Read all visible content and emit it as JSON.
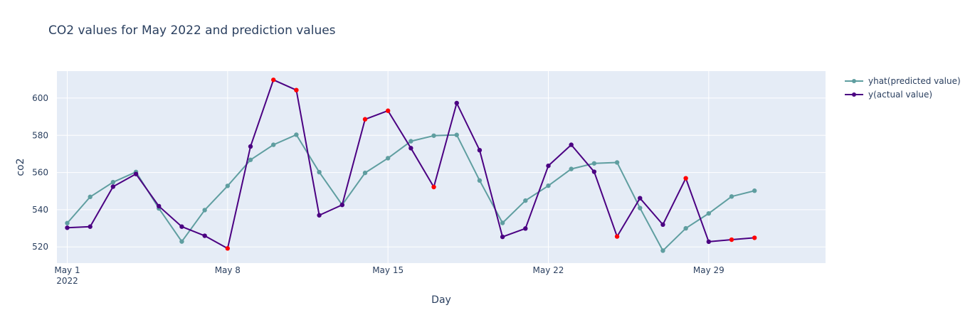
{
  "chart_data": {
    "type": "line",
    "title": "CO2 values for May 2022 and prediction values",
    "xlabel": "Day",
    "ylabel": "co2",
    "x_ticks": [
      "May 1",
      "May 8",
      "May 15",
      "May 22",
      "May 29"
    ],
    "x_tick_year": "2022",
    "x_tick_days": [
      1,
      8,
      15,
      22,
      29
    ],
    "y_ticks": [
      520,
      540,
      560,
      580,
      600
    ],
    "xlim": [
      0.55,
      34.1
    ],
    "ylim": [
      511.3,
      614.5
    ],
    "grid": true,
    "legend_position": "right",
    "days": [
      1,
      2,
      3,
      4,
      5,
      6,
      7,
      8,
      9,
      10,
      11,
      12,
      13,
      14,
      15,
      16,
      17,
      18,
      19,
      20,
      21,
      22,
      23,
      24,
      25,
      26,
      27,
      28,
      29,
      30,
      31
    ],
    "series": [
      {
        "name": "yhat(predicted value)",
        "color": "#5f9ea0",
        "values": [
          532.8,
          546.9,
          554.8,
          560.3,
          540.7,
          522.9,
          539.8,
          552.8,
          566.8,
          574.9,
          580.3,
          560.2,
          542.6,
          559.8,
          567.7,
          576.8,
          579.8,
          580.2,
          555.7,
          532.9,
          544.9,
          552.9,
          561.9,
          564.9,
          565.4,
          540.9,
          518.0,
          530.0,
          538.0,
          547.1,
          550.2
        ]
      },
      {
        "name": "y(actual value)",
        "color": "#4b0082",
        "highlight_color": "#ff0000",
        "values": [
          530.3,
          530.9,
          552.4,
          559.2,
          541.9,
          530.9,
          526.0,
          519.2,
          574.0,
          609.8,
          604.3,
          537.0,
          542.6,
          588.6,
          593.2,
          573.1,
          552.2,
          597.3,
          572.0,
          525.4,
          529.9,
          563.6,
          574.9,
          560.4,
          525.6,
          546.2,
          532.0,
          556.9,
          522.8,
          523.9,
          524.9
        ],
        "highlighted_days": [
          8,
          10,
          11,
          14,
          15,
          17,
          25,
          28,
          30,
          31
        ]
      }
    ]
  }
}
